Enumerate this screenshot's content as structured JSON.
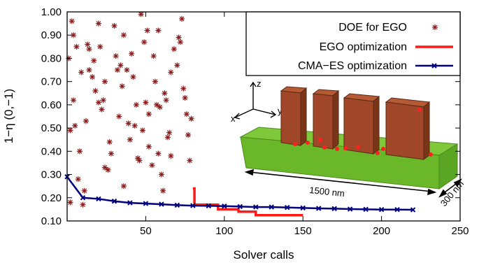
{
  "chart_data": {
    "type": "scatter",
    "xlabel": "Solver calls",
    "ylabel": "1−η (0,−1)",
    "xlim": [
      0,
      250
    ],
    "ylim": [
      0.1,
      1.0
    ],
    "x_ticks": [
      50,
      100,
      150,
      200,
      250
    ],
    "x_tick_labels": [
      "50",
      "100",
      "150",
      "200",
      "250"
    ],
    "y_ticks": [
      0.1,
      0.2,
      0.3,
      0.4,
      0.5,
      0.6,
      0.7,
      0.8,
      0.9,
      1.0
    ],
    "y_tick_labels": [
      "0.10",
      "0.20",
      "0.30",
      "0.40",
      "0.50",
      "0.60",
      "0.70",
      "0.80",
      "0.90",
      "1.00"
    ],
    "legend_position": "top-right",
    "series": [
      {
        "name": "DOE for EGO",
        "kind": "points",
        "color": "#8b1a1a",
        "marker": "asterisk",
        "points": [
          [
            1,
            0.8
          ],
          [
            2,
            0.49
          ],
          [
            2,
            0.18
          ],
          [
            3,
            0.96
          ],
          [
            4,
            0.9
          ],
          [
            4,
            0.62
          ],
          [
            5,
            0.51
          ],
          [
            6,
            0.85
          ],
          [
            7,
            0.28
          ],
          [
            8,
            0.4
          ],
          [
            9,
            0.74
          ],
          [
            10,
            0.17
          ],
          [
            11,
            0.23
          ],
          [
            12,
            0.53
          ],
          [
            13,
            0.86
          ],
          [
            14,
            0.75
          ],
          [
            14,
            0.84
          ],
          [
            16,
            0.72
          ],
          [
            17,
            0.79
          ],
          [
            18,
            0.66
          ],
          [
            20,
            0.95
          ],
          [
            20,
            0.61
          ],
          [
            21,
            0.85
          ],
          [
            22,
            0.58
          ],
          [
            23,
            0.62
          ],
          [
            24,
            0.7
          ],
          [
            24,
            0.33
          ],
          [
            26,
            0.32
          ],
          [
            27,
            0.44
          ],
          [
            28,
            0.39
          ],
          [
            30,
            0.94
          ],
          [
            31,
            0.81
          ],
          [
            32,
            0.75
          ],
          [
            33,
            0.55
          ],
          [
            34,
            0.77
          ],
          [
            35,
            0.68
          ],
          [
            36,
            0.25
          ],
          [
            36,
            0.9
          ],
          [
            38,
            0.75
          ],
          [
            39,
            0.52
          ],
          [
            40,
            0.45
          ],
          [
            41,
            0.82
          ],
          [
            42,
            0.72
          ],
          [
            43,
            0.51
          ],
          [
            44,
            0.6
          ],
          [
            45,
            0.37
          ],
          [
            46,
            0.36
          ],
          [
            47,
            0.99
          ],
          [
            48,
            0.49
          ],
          [
            49,
            0.87
          ],
          [
            50,
            0.61
          ],
          [
            51,
            0.92
          ],
          [
            52,
            0.56
          ],
          [
            52,
            0.42
          ],
          [
            54,
            0.34
          ],
          [
            55,
            0.81
          ],
          [
            56,
            0.7
          ],
          [
            57,
            0.6
          ],
          [
            58,
            0.92
          ],
          [
            59,
            0.59
          ],
          [
            60,
            0.3
          ],
          [
            61,
            0.23
          ],
          [
            62,
            0.65
          ],
          [
            63,
            0.62
          ],
          [
            64,
            0.46
          ],
          [
            65,
            0.48
          ],
          [
            66,
            0.74
          ],
          [
            66,
            0.38
          ],
          [
            68,
            0.84
          ],
          [
            70,
            0.77
          ],
          [
            71,
            0.89
          ],
          [
            72,
            0.87
          ],
          [
            73,
            0.97
          ],
          [
            74,
            0.67
          ],
          [
            75,
            0.63
          ],
          [
            76,
            0.56
          ],
          [
            77,
            0.47
          ],
          [
            78,
            0.36
          ],
          [
            58,
            0.39
          ],
          [
            79,
            0.54
          ]
        ]
      },
      {
        "name": "EGO optimization",
        "kind": "step",
        "color": "#ff1a1a",
        "points": [
          [
            80,
            0.24
          ],
          [
            81,
            0.17
          ],
          [
            95,
            0.17
          ],
          [
            96,
            0.15
          ],
          [
            108,
            0.15
          ],
          [
            109,
            0.14
          ],
          [
            119,
            0.14
          ],
          [
            120,
            0.125
          ],
          [
            150,
            0.125
          ]
        ]
      },
      {
        "name": "CMA−ES optimization",
        "kind": "line",
        "color": "#00007f",
        "marker": "x",
        "points": [
          [
            0,
            0.29
          ],
          [
            10,
            0.2
          ],
          [
            20,
            0.195
          ],
          [
            30,
            0.185
          ],
          [
            40,
            0.178
          ],
          [
            50,
            0.175
          ],
          [
            60,
            0.172
          ],
          [
            70,
            0.168
          ],
          [
            80,
            0.166
          ],
          [
            90,
            0.165
          ],
          [
            100,
            0.164
          ],
          [
            110,
            0.162
          ],
          [
            120,
            0.16
          ],
          [
            130,
            0.16
          ],
          [
            140,
            0.158
          ],
          [
            150,
            0.156
          ],
          [
            160,
            0.154
          ],
          [
            170,
            0.153
          ],
          [
            180,
            0.151
          ],
          [
            190,
            0.15
          ],
          [
            200,
            0.149
          ],
          [
            210,
            0.149
          ],
          [
            220,
            0.148
          ]
        ]
      }
    ],
    "inset": {
      "axis_labels": [
        "z",
        "x",
        "y"
      ],
      "dimension_labels": [
        "1500 nm",
        "300 nm"
      ]
    }
  }
}
